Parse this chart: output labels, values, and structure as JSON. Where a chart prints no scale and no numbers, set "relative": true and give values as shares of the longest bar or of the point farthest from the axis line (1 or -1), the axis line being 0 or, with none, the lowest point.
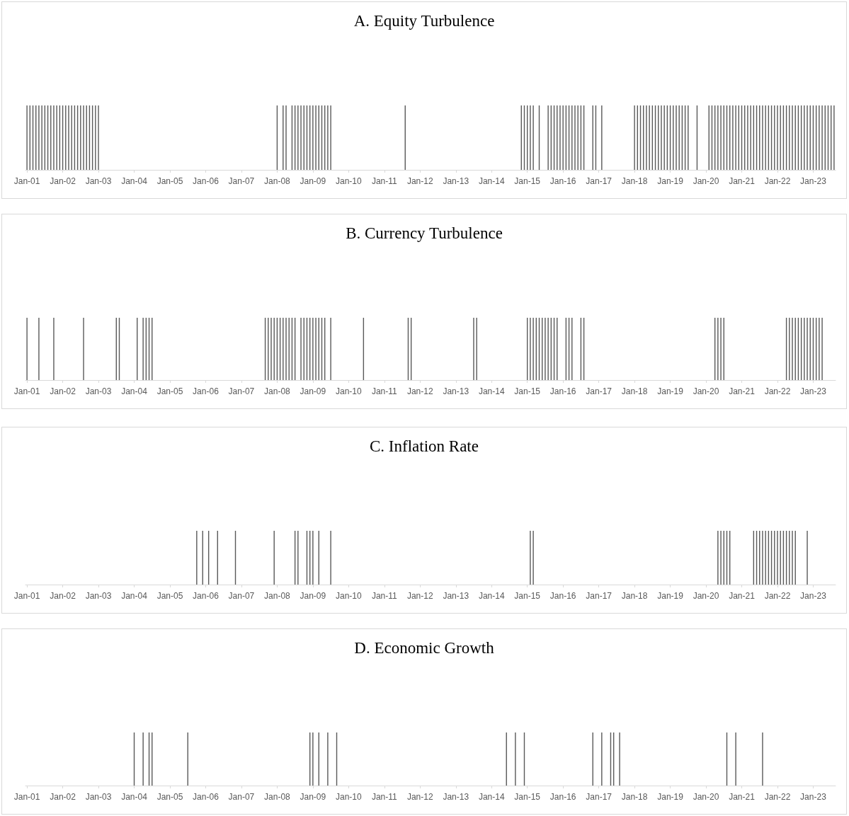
{
  "chart_data": [
    {
      "type": "bar",
      "title": "A. Equity Turbulence",
      "relative": true,
      "color": "#595959",
      "categories": [
        "Jan-01",
        null,
        null,
        null,
        null,
        null,
        null,
        null,
        null,
        null,
        null,
        null,
        "Jan-02",
        null,
        null,
        null,
        null,
        null,
        null,
        null,
        null,
        null,
        null,
        null,
        "Jan-03",
        null,
        null,
        null,
        null,
        null,
        null,
        null,
        null,
        null,
        null,
        null,
        "Jan-04",
        null,
        null,
        null,
        null,
        null,
        null,
        null,
        null,
        null,
        null,
        null,
        "Jan-05",
        null,
        null,
        null,
        null,
        null,
        null,
        null,
        null,
        null,
        null,
        null,
        "Jan-06",
        null,
        null,
        null,
        null,
        null,
        null,
        null,
        null,
        null,
        null,
        null,
        "Jan-07",
        null,
        null,
        null,
        null,
        null,
        null,
        null,
        null,
        null,
        null,
        null,
        "Jan-08",
        null,
        null,
        null,
        null,
        null,
        null,
        null,
        null,
        null,
        null,
        null,
        "Jan-09",
        null,
        null,
        null,
        null,
        null,
        null,
        null,
        null,
        null,
        null,
        null,
        "Jan-10",
        null,
        null,
        null,
        null,
        null,
        null,
        null,
        null,
        null,
        null,
        null,
        "Jan-11",
        null,
        null,
        null,
        null,
        null,
        null,
        null,
        null,
        null,
        null,
        null,
        "Jan-12",
        null,
        null,
        null,
        null,
        null,
        null,
        null,
        null,
        null,
        null,
        null,
        "Jan-13",
        null,
        null,
        null,
        null,
        null,
        null,
        null,
        null,
        null,
        null,
        null,
        "Jan-14",
        null,
        null,
        null,
        null,
        null,
        null,
        null,
        null,
        null,
        null,
        null,
        "Jan-15",
        null,
        null,
        null,
        null,
        null,
        null,
        null,
        null,
        null,
        null,
        null,
        "Jan-16",
        null,
        null,
        null,
        null,
        null,
        null,
        null,
        null,
        null,
        null,
        null,
        "Jan-17",
        null,
        null,
        null,
        null,
        null,
        null,
        null,
        null,
        null,
        null,
        null,
        "Jan-18",
        null,
        null,
        null,
        null,
        null,
        null,
        null,
        null,
        null,
        null,
        null,
        "Jan-19",
        null,
        null,
        null,
        null,
        null,
        null,
        null,
        null,
        null,
        null,
        null,
        "Jan-20",
        null,
        null,
        null,
        null,
        null,
        null,
        null,
        null,
        null,
        null,
        null,
        "Jan-21",
        null,
        null,
        null,
        null,
        null,
        null,
        null,
        null,
        null,
        null,
        null,
        "Jan-22",
        null,
        null,
        null,
        null,
        null,
        null,
        null,
        null,
        null,
        null,
        null,
        "Jan-23",
        null,
        null,
        null,
        null,
        null,
        null,
        null
      ],
      "values": [
        1,
        1,
        1,
        1,
        1,
        1,
        1,
        1,
        1,
        1,
        1,
        1,
        1,
        1,
        1,
        1,
        1,
        1,
        1,
        1,
        1,
        1,
        1,
        1,
        1,
        null,
        null,
        null,
        null,
        null,
        null,
        null,
        null,
        null,
        null,
        null,
        null,
        null,
        null,
        null,
        null,
        null,
        null,
        null,
        null,
        null,
        null,
        null,
        null,
        null,
        null,
        null,
        null,
        null,
        null,
        null,
        null,
        null,
        null,
        null,
        null,
        null,
        null,
        null,
        null,
        null,
        null,
        null,
        null,
        null,
        null,
        null,
        null,
        null,
        null,
        null,
        null,
        null,
        null,
        null,
        null,
        null,
        null,
        null,
        1,
        null,
        1,
        1,
        null,
        1,
        1,
        1,
        1,
        1,
        1,
        1,
        1,
        1,
        1,
        1,
        1,
        1,
        1,
        null,
        null,
        null,
        null,
        null,
        null,
        null,
        null,
        null,
        null,
        null,
        null,
        null,
        null,
        null,
        null,
        null,
        null,
        null,
        null,
        null,
        null,
        null,
        null,
        1,
        null,
        null,
        null,
        null,
        null,
        null,
        null,
        null,
        null,
        null,
        null,
        null,
        null,
        null,
        null,
        null,
        null,
        null,
        null,
        null,
        null,
        null,
        null,
        null,
        null,
        null,
        null,
        null,
        null,
        null,
        null,
        null,
        null,
        null,
        null,
        null,
        null,
        null,
        1,
        1,
        1,
        1,
        1,
        null,
        1,
        null,
        null,
        1,
        1,
        1,
        1,
        1,
        1,
        1,
        1,
        1,
        1,
        1,
        1,
        1,
        null,
        null,
        1,
        1,
        null,
        1,
        null,
        null,
        null,
        null,
        null,
        null,
        null,
        null,
        null,
        null,
        1,
        1,
        1,
        1,
        1,
        1,
        1,
        1,
        1,
        1,
        1,
        1,
        1,
        1,
        1,
        1,
        1,
        1,
        1,
        null,
        null,
        1,
        null,
        null,
        null,
        1,
        1,
        1,
        1,
        1,
        1,
        1,
        1,
        1,
        1,
        1,
        1,
        1,
        1,
        1,
        1,
        1,
        1,
        1,
        1,
        1,
        1,
        1,
        1,
        1,
        1,
        1,
        1,
        1,
        1,
        1,
        1,
        1,
        1,
        1,
        1,
        1,
        1,
        1,
        1,
        1,
        1,
        1
      ]
    },
    {
      "type": "bar",
      "title": "B. Currency Turbulence",
      "relative": true,
      "color": "#595959",
      "categories": [
        "Jan-01",
        null,
        null,
        null,
        null,
        null,
        null,
        null,
        null,
        null,
        null,
        null,
        "Jan-02",
        null,
        null,
        null,
        null,
        null,
        null,
        null,
        null,
        null,
        null,
        null,
        "Jan-03",
        null,
        null,
        null,
        null,
        null,
        null,
        null,
        null,
        null,
        null,
        null,
        "Jan-04",
        null,
        null,
        null,
        null,
        null,
        null,
        null,
        null,
        null,
        null,
        null,
        "Jan-05",
        null,
        null,
        null,
        null,
        null,
        null,
        null,
        null,
        null,
        null,
        null,
        "Jan-06",
        null,
        null,
        null,
        null,
        null,
        null,
        null,
        null,
        null,
        null,
        null,
        "Jan-07",
        null,
        null,
        null,
        null,
        null,
        null,
        null,
        null,
        null,
        null,
        null,
        "Jan-08",
        null,
        null,
        null,
        null,
        null,
        null,
        null,
        null,
        null,
        null,
        null,
        "Jan-09",
        null,
        null,
        null,
        null,
        null,
        null,
        null,
        null,
        null,
        null,
        null,
        "Jan-10",
        null,
        null,
        null,
        null,
        null,
        null,
        null,
        null,
        null,
        null,
        null,
        "Jan-11",
        null,
        null,
        null,
        null,
        null,
        null,
        null,
        null,
        null,
        null,
        null,
        "Jan-12",
        null,
        null,
        null,
        null,
        null,
        null,
        null,
        null,
        null,
        null,
        null,
        "Jan-13",
        null,
        null,
        null,
        null,
        null,
        null,
        null,
        null,
        null,
        null,
        null,
        "Jan-14",
        null,
        null,
        null,
        null,
        null,
        null,
        null,
        null,
        null,
        null,
        null,
        "Jan-15",
        null,
        null,
        null,
        null,
        null,
        null,
        null,
        null,
        null,
        null,
        null,
        "Jan-16",
        null,
        null,
        null,
        null,
        null,
        null,
        null,
        null,
        null,
        null,
        null,
        "Jan-17",
        null,
        null,
        null,
        null,
        null,
        null,
        null,
        null,
        null,
        null,
        null,
        "Jan-18",
        null,
        null,
        null,
        null,
        null,
        null,
        null,
        null,
        null,
        null,
        null,
        "Jan-19",
        null,
        null,
        null,
        null,
        null,
        null,
        null,
        null,
        null,
        null,
        null,
        "Jan-20",
        null,
        null,
        null,
        null,
        null,
        null,
        null,
        null,
        null,
        null,
        null,
        "Jan-21",
        null,
        null,
        null,
        null,
        null,
        null,
        null,
        null,
        null,
        null,
        null,
        "Jan-22",
        null,
        null,
        null,
        null,
        null,
        null,
        null,
        null,
        null,
        null,
        null,
        "Jan-23",
        null,
        null,
        null,
        null,
        null,
        null,
        null
      ],
      "values": [
        1,
        null,
        null,
        null,
        1,
        null,
        null,
        null,
        null,
        1,
        null,
        null,
        null,
        null,
        null,
        null,
        null,
        null,
        null,
        1,
        null,
        null,
        null,
        null,
        null,
        null,
        null,
        null,
        null,
        null,
        1,
        1,
        null,
        null,
        null,
        null,
        null,
        1,
        null,
        1,
        1,
        1,
        1,
        null,
        null,
        null,
        null,
        null,
        null,
        null,
        null,
        null,
        null,
        null,
        null,
        null,
        null,
        null,
        null,
        null,
        null,
        null,
        null,
        null,
        null,
        null,
        null,
        null,
        null,
        null,
        null,
        null,
        null,
        null,
        null,
        null,
        null,
        null,
        null,
        null,
        1,
        1,
        1,
        1,
        1,
        1,
        1,
        1,
        1,
        1,
        1,
        null,
        1,
        1,
        1,
        1,
        1,
        1,
        1,
        1,
        1,
        null,
        1,
        null,
        null,
        null,
        null,
        null,
        null,
        null,
        null,
        null,
        null,
        1,
        null,
        null,
        null,
        null,
        null,
        null,
        null,
        null,
        null,
        null,
        null,
        null,
        null,
        null,
        1,
        1,
        null,
        null,
        null,
        null,
        null,
        null,
        null,
        null,
        null,
        null,
        null,
        null,
        null,
        null,
        null,
        null,
        null,
        null,
        null,
        null,
        1,
        1,
        null,
        null,
        null,
        null,
        null,
        null,
        null,
        null,
        null,
        null,
        null,
        null,
        null,
        null,
        null,
        null,
        1,
        1,
        1,
        1,
        1,
        1,
        1,
        1,
        1,
        1,
        1,
        null,
        null,
        1,
        1,
        1,
        null,
        null,
        1,
        1,
        null,
        null,
        null,
        null,
        null,
        null,
        null,
        null,
        null,
        null,
        null,
        null,
        null,
        null,
        null,
        null,
        null,
        null,
        null,
        null,
        null,
        null,
        null,
        null,
        null,
        null,
        null,
        null,
        null,
        null,
        null,
        null,
        null,
        null,
        null,
        null,
        null,
        null,
        null,
        null,
        null,
        null,
        null,
        1,
        1,
        1,
        1,
        null,
        null,
        null,
        null,
        null,
        null,
        null,
        null,
        null,
        null,
        null,
        null,
        null,
        null,
        null,
        null,
        null,
        null,
        null,
        null,
        1,
        1,
        1,
        1,
        1,
        1,
        1,
        1,
        1,
        1,
        1,
        1,
        1,
        null,
        null,
        null,
        null
      ]
    },
    {
      "type": "bar",
      "title": "C. Inflation Rate",
      "relative": true,
      "color": "#595959",
      "categories": [
        "Jan-01",
        null,
        null,
        null,
        null,
        null,
        null,
        null,
        null,
        null,
        null,
        null,
        "Jan-02",
        null,
        null,
        null,
        null,
        null,
        null,
        null,
        null,
        null,
        null,
        null,
        "Jan-03",
        null,
        null,
        null,
        null,
        null,
        null,
        null,
        null,
        null,
        null,
        null,
        "Jan-04",
        null,
        null,
        null,
        null,
        null,
        null,
        null,
        null,
        null,
        null,
        null,
        "Jan-05",
        null,
        null,
        null,
        null,
        null,
        null,
        null,
        null,
        null,
        null,
        null,
        "Jan-06",
        null,
        null,
        null,
        null,
        null,
        null,
        null,
        null,
        null,
        null,
        null,
        "Jan-07",
        null,
        null,
        null,
        null,
        null,
        null,
        null,
        null,
        null,
        null,
        null,
        "Jan-08",
        null,
        null,
        null,
        null,
        null,
        null,
        null,
        null,
        null,
        null,
        null,
        "Jan-09",
        null,
        null,
        null,
        null,
        null,
        null,
        null,
        null,
        null,
        null,
        null,
        "Jan-10",
        null,
        null,
        null,
        null,
        null,
        null,
        null,
        null,
        null,
        null,
        null,
        "Jan-11",
        null,
        null,
        null,
        null,
        null,
        null,
        null,
        null,
        null,
        null,
        null,
        "Jan-12",
        null,
        null,
        null,
        null,
        null,
        null,
        null,
        null,
        null,
        null,
        null,
        "Jan-13",
        null,
        null,
        null,
        null,
        null,
        null,
        null,
        null,
        null,
        null,
        null,
        "Jan-14",
        null,
        null,
        null,
        null,
        null,
        null,
        null,
        null,
        null,
        null,
        null,
        "Jan-15",
        null,
        null,
        null,
        null,
        null,
        null,
        null,
        null,
        null,
        null,
        null,
        "Jan-16",
        null,
        null,
        null,
        null,
        null,
        null,
        null,
        null,
        null,
        null,
        null,
        "Jan-17",
        null,
        null,
        null,
        null,
        null,
        null,
        null,
        null,
        null,
        null,
        null,
        "Jan-18",
        null,
        null,
        null,
        null,
        null,
        null,
        null,
        null,
        null,
        null,
        null,
        "Jan-19",
        null,
        null,
        null,
        null,
        null,
        null,
        null,
        null,
        null,
        null,
        null,
        "Jan-20",
        null,
        null,
        null,
        null,
        null,
        null,
        null,
        null,
        null,
        null,
        null,
        "Jan-21",
        null,
        null,
        null,
        null,
        null,
        null,
        null,
        null,
        null,
        null,
        null,
        "Jan-22",
        null,
        null,
        null,
        null,
        null,
        null,
        null,
        null,
        null,
        null,
        null,
        "Jan-23",
        null,
        null,
        null,
        null,
        null,
        null,
        null
      ],
      "values": [
        null,
        null,
        null,
        null,
        null,
        null,
        null,
        null,
        null,
        null,
        null,
        null,
        null,
        null,
        null,
        null,
        null,
        null,
        null,
        null,
        null,
        null,
        null,
        null,
        null,
        null,
        null,
        null,
        null,
        null,
        null,
        null,
        null,
        null,
        null,
        null,
        null,
        null,
        null,
        null,
        null,
        null,
        null,
        null,
        null,
        null,
        null,
        null,
        null,
        null,
        null,
        null,
        null,
        null,
        null,
        null,
        null,
        1,
        null,
        1,
        null,
        1,
        null,
        null,
        1,
        null,
        null,
        null,
        null,
        null,
        1,
        null,
        null,
        null,
        null,
        null,
        null,
        null,
        null,
        null,
        null,
        null,
        null,
        1,
        null,
        null,
        null,
        null,
        null,
        null,
        1,
        1,
        null,
        null,
        1,
        1,
        1,
        null,
        1,
        null,
        null,
        null,
        1,
        null,
        null,
        null,
        null,
        null,
        null,
        null,
        null,
        null,
        null,
        null,
        null,
        null,
        null,
        null,
        null,
        null,
        null,
        null,
        null,
        null,
        null,
        null,
        null,
        null,
        null,
        null,
        null,
        null,
        null,
        null,
        null,
        null,
        null,
        null,
        null,
        null,
        null,
        null,
        null,
        null,
        null,
        null,
        null,
        null,
        null,
        null,
        null,
        null,
        null,
        null,
        null,
        null,
        null,
        null,
        null,
        null,
        null,
        null,
        null,
        null,
        null,
        null,
        null,
        null,
        null,
        1,
        1,
        null,
        null,
        null,
        null,
        null,
        null,
        null,
        null,
        null,
        null,
        null,
        null,
        null,
        null,
        null,
        null,
        null,
        null,
        null,
        null,
        null,
        null,
        null,
        null,
        null,
        null,
        null,
        null,
        null,
        null,
        null,
        null,
        null,
        null,
        null,
        null,
        null,
        null,
        null,
        null,
        null,
        null,
        null,
        null,
        null,
        null,
        null,
        null,
        null,
        null,
        null,
        null,
        null,
        null,
        null,
        null,
        null,
        null,
        null,
        null,
        null,
        1,
        1,
        1,
        1,
        1,
        null,
        null,
        null,
        null,
        null,
        null,
        null,
        1,
        1,
        1,
        1,
        1,
        1,
        1,
        1,
        1,
        1,
        1,
        1,
        1,
        1,
        1,
        null,
        null,
        null,
        1,
        null,
        null,
        null,
        null,
        null,
        null,
        null,
        null,
        null
      ]
    },
    {
      "type": "bar",
      "title": "D. Economic Growth",
      "relative": true,
      "color": "#595959",
      "categories": [
        "Jan-01",
        null,
        null,
        null,
        null,
        null,
        null,
        null,
        null,
        null,
        null,
        null,
        "Jan-02",
        null,
        null,
        null,
        null,
        null,
        null,
        null,
        null,
        null,
        null,
        null,
        "Jan-03",
        null,
        null,
        null,
        null,
        null,
        null,
        null,
        null,
        null,
        null,
        null,
        "Jan-04",
        null,
        null,
        null,
        null,
        null,
        null,
        null,
        null,
        null,
        null,
        null,
        "Jan-05",
        null,
        null,
        null,
        null,
        null,
        null,
        null,
        null,
        null,
        null,
        null,
        "Jan-06",
        null,
        null,
        null,
        null,
        null,
        null,
        null,
        null,
        null,
        null,
        null,
        "Jan-07",
        null,
        null,
        null,
        null,
        null,
        null,
        null,
        null,
        null,
        null,
        null,
        "Jan-08",
        null,
        null,
        null,
        null,
        null,
        null,
        null,
        null,
        null,
        null,
        null,
        "Jan-09",
        null,
        null,
        null,
        null,
        null,
        null,
        null,
        null,
        null,
        null,
        null,
        "Jan-10",
        null,
        null,
        null,
        null,
        null,
        null,
        null,
        null,
        null,
        null,
        null,
        "Jan-11",
        null,
        null,
        null,
        null,
        null,
        null,
        null,
        null,
        null,
        null,
        null,
        "Jan-12",
        null,
        null,
        null,
        null,
        null,
        null,
        null,
        null,
        null,
        null,
        null,
        "Jan-13",
        null,
        null,
        null,
        null,
        null,
        null,
        null,
        null,
        null,
        null,
        null,
        "Jan-14",
        null,
        null,
        null,
        null,
        null,
        null,
        null,
        null,
        null,
        null,
        null,
        "Jan-15",
        null,
        null,
        null,
        null,
        null,
        null,
        null,
        null,
        null,
        null,
        null,
        "Jan-16",
        null,
        null,
        null,
        null,
        null,
        null,
        null,
        null,
        null,
        null,
        null,
        "Jan-17",
        null,
        null,
        null,
        null,
        null,
        null,
        null,
        null,
        null,
        null,
        null,
        "Jan-18",
        null,
        null,
        null,
        null,
        null,
        null,
        null,
        null,
        null,
        null,
        null,
        "Jan-19",
        null,
        null,
        null,
        null,
        null,
        null,
        null,
        null,
        null,
        null,
        null,
        "Jan-20",
        null,
        null,
        null,
        null,
        null,
        null,
        null,
        null,
        null,
        null,
        null,
        "Jan-21",
        null,
        null,
        null,
        null,
        null,
        null,
        null,
        null,
        null,
        null,
        null,
        "Jan-22",
        null,
        null,
        null,
        null,
        null,
        null,
        null,
        null,
        null,
        null,
        null,
        "Jan-23",
        null,
        null,
        null,
        null,
        null,
        null,
        null
      ],
      "values": [
        null,
        null,
        null,
        null,
        null,
        null,
        null,
        null,
        null,
        null,
        null,
        null,
        null,
        null,
        null,
        null,
        null,
        null,
        null,
        null,
        null,
        null,
        null,
        null,
        null,
        null,
        null,
        null,
        null,
        null,
        null,
        null,
        null,
        null,
        null,
        null,
        1,
        null,
        null,
        1,
        null,
        1,
        1,
        null,
        null,
        null,
        null,
        null,
        null,
        null,
        null,
        null,
        null,
        null,
        1,
        null,
        null,
        null,
        null,
        null,
        null,
        null,
        null,
        null,
        null,
        null,
        null,
        null,
        null,
        null,
        null,
        null,
        null,
        null,
        null,
        null,
        null,
        null,
        null,
        null,
        null,
        null,
        null,
        null,
        null,
        null,
        null,
        null,
        null,
        null,
        null,
        null,
        null,
        null,
        null,
        1,
        1,
        null,
        1,
        null,
        null,
        1,
        null,
        null,
        1,
        null,
        null,
        null,
        null,
        null,
        null,
        null,
        null,
        null,
        null,
        null,
        null,
        null,
        null,
        null,
        null,
        null,
        null,
        null,
        null,
        null,
        null,
        null,
        null,
        null,
        null,
        null,
        null,
        null,
        null,
        null,
        null,
        null,
        null,
        null,
        null,
        null,
        null,
        null,
        null,
        null,
        null,
        null,
        null,
        null,
        null,
        null,
        null,
        null,
        null,
        null,
        null,
        null,
        null,
        null,
        null,
        1,
        null,
        null,
        1,
        null,
        null,
        1,
        null,
        null,
        null,
        null,
        null,
        null,
        null,
        null,
        null,
        null,
        null,
        null,
        null,
        null,
        null,
        null,
        null,
        null,
        null,
        null,
        null,
        null,
        1,
        null,
        null,
        1,
        null,
        null,
        1,
        1,
        null,
        1,
        null,
        null,
        null,
        null,
        null,
        null,
        null,
        null,
        null,
        null,
        null,
        null,
        null,
        null,
        null,
        null,
        null,
        null,
        null,
        null,
        null,
        null,
        null,
        null,
        null,
        null,
        null,
        null,
        null,
        null,
        null,
        null,
        null,
        null,
        null,
        1,
        null,
        null,
        1,
        null,
        null,
        null,
        null,
        null,
        null,
        null,
        null,
        1,
        null,
        null,
        null,
        null,
        null,
        null,
        null,
        null,
        null,
        null,
        null,
        null,
        null,
        null,
        null,
        null,
        null,
        null,
        null,
        null,
        null,
        null,
        null,
        null
      ]
    }
  ]
}
